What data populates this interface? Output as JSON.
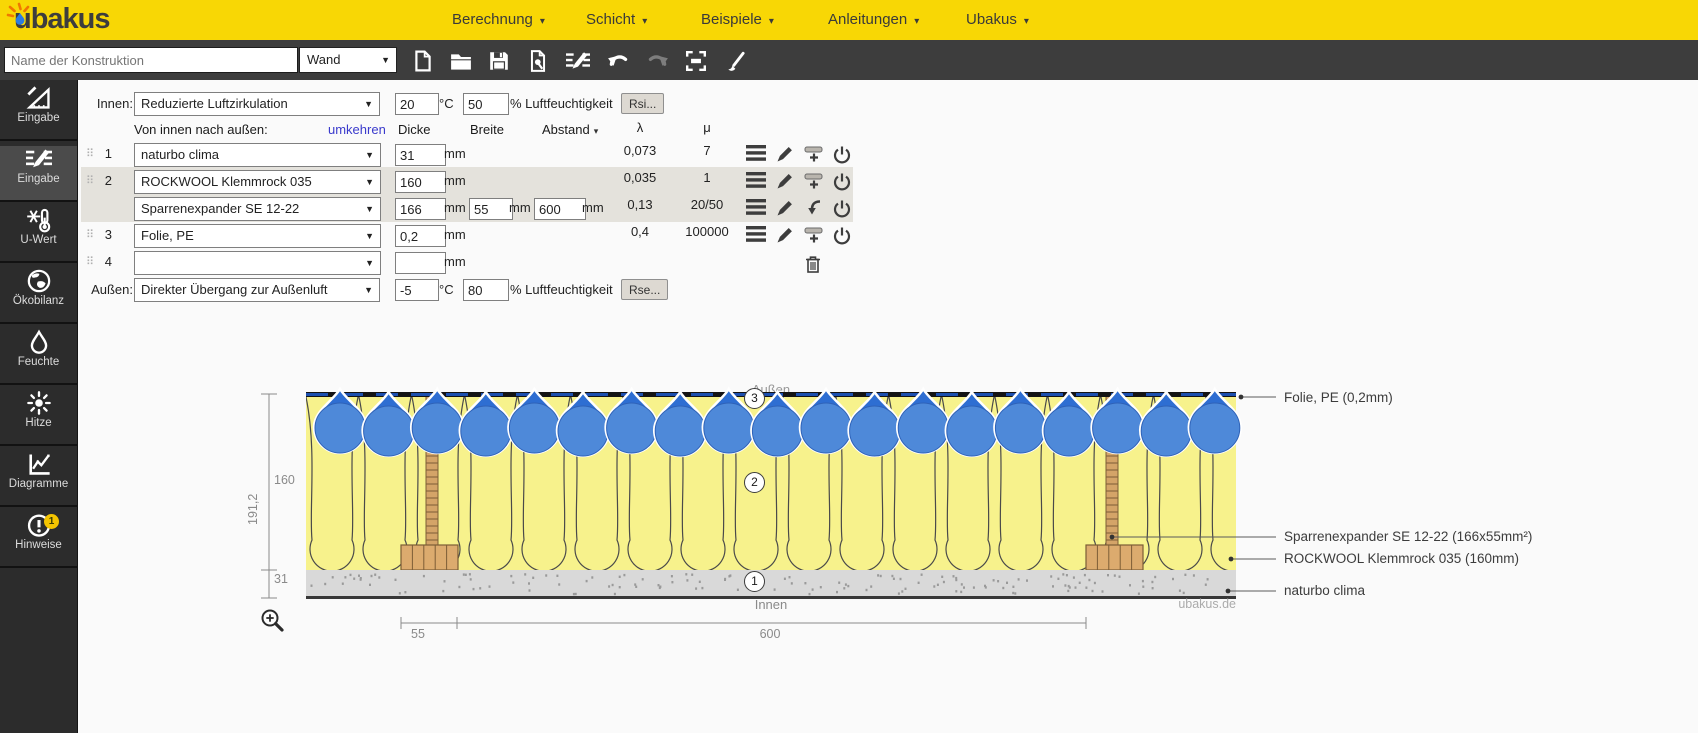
{
  "topbar": {
    "logo_text": "ubakus",
    "menus": [
      {
        "label": "Berechnung"
      },
      {
        "label": "Schicht"
      },
      {
        "label": "Beispiele"
      },
      {
        "label": "Anleitungen"
      },
      {
        "label": "Ubakus"
      }
    ]
  },
  "toolbar": {
    "name_input_placeholder": "Name der Konstruktion",
    "construction_type": "Wand",
    "icons": [
      "new-file",
      "open-folder",
      "save",
      "pdf-export",
      "edit-layers",
      "undo",
      "redo",
      "fullscreen",
      "paintbrush"
    ]
  },
  "sidebar": {
    "items": [
      {
        "label": "Eingabe",
        "icon": "set-square-icon"
      },
      {
        "label": "Eingabe",
        "icon": "edit-layers-icon",
        "active": true
      },
      {
        "label": "U-Wert",
        "icon": "frost-thermometer-icon"
      },
      {
        "label": "Ökobilanz",
        "icon": "globe-icon"
      },
      {
        "label": "Feuchte",
        "icon": "water-drop-icon"
      },
      {
        "label": "Hitze",
        "icon": "sun-icon"
      },
      {
        "label": "Diagramme",
        "icon": "line-chart-icon"
      },
      {
        "label": "Hinweise",
        "icon": "alert-icon",
        "badge": "1"
      }
    ]
  },
  "surface": {
    "innen": {
      "label": "Innen:",
      "boundary": "Reduzierte Luftzirkulation",
      "temperature": "20",
      "temperature_unit": "°C",
      "humidity": "50",
      "humidity_unit": "% Luftfeuchtigkeit",
      "resistance_button": "Rsi..."
    },
    "aussen": {
      "label": "Außen:",
      "boundary": "Direkter Übergang zur Außenluft",
      "temperature": "-5",
      "temperature_unit": "°C",
      "humidity": "80",
      "humidity_unit": "% Luftfeuchtigkeit",
      "resistance_button": "Rse..."
    }
  },
  "layers_table": {
    "direction_label": "Von innen nach außen:",
    "reverse_link": "umkehren",
    "col_dicke": "Dicke",
    "col_breite": "Breite",
    "col_abstand": "Abstand",
    "col_lambda": "λ",
    "col_mu": "μ",
    "unit_mm": "mm",
    "rows": [
      {
        "num": "1",
        "material": "naturbo clima",
        "thickness": "31",
        "lambda": "0,073",
        "mu": "7"
      },
      {
        "num": "2",
        "material": "ROCKWOOL Klemmrock 035",
        "thickness": "160",
        "lambda": "0,035",
        "mu": "1"
      },
      {
        "num": "",
        "material": "Sparrenexpander SE 12-22",
        "thickness": "166",
        "width": "55",
        "spacing": "600",
        "lambda": "0,13",
        "mu": "20/50"
      },
      {
        "num": "3",
        "material": "Folie, PE",
        "thickness": "0,2",
        "lambda": "0,4",
        "mu": "100000"
      },
      {
        "num": "4",
        "material": "",
        "thickness": ""
      }
    ]
  },
  "diagram": {
    "outside_label": "Außen",
    "inside_label": "Innen",
    "watermark": "ubakus.de",
    "dims": {
      "total": "191,2",
      "insulation": "160",
      "base": "31",
      "stud_width": "55",
      "stud_spacing": "600"
    },
    "markers": [
      {
        "n": "1"
      },
      {
        "n": "2"
      },
      {
        "n": "3"
      }
    ],
    "annotations": [
      {
        "text": "Folie, PE (0,2mm)"
      },
      {
        "text": "Sparrenexpander SE 12-22 (166x55mm²)"
      },
      {
        "text": "ROCKWOOL Klemmrock 035 (160mm)"
      },
      {
        "text": "naturbo clima"
      }
    ],
    "colors": {
      "insulation": "#f7f28c",
      "wool_line": "#4a4a4a",
      "wood": "#d4a468",
      "wood_line": "#7c5d36",
      "wood_foot": "#dcab6e",
      "base": "#d9d9d9",
      "speckle": "#9a9a9a",
      "drop_body": "#4e89d9",
      "drop_dark": "#2e6ed2",
      "film": "#141414",
      "vapor_dash": "#1c4fae"
    }
  }
}
